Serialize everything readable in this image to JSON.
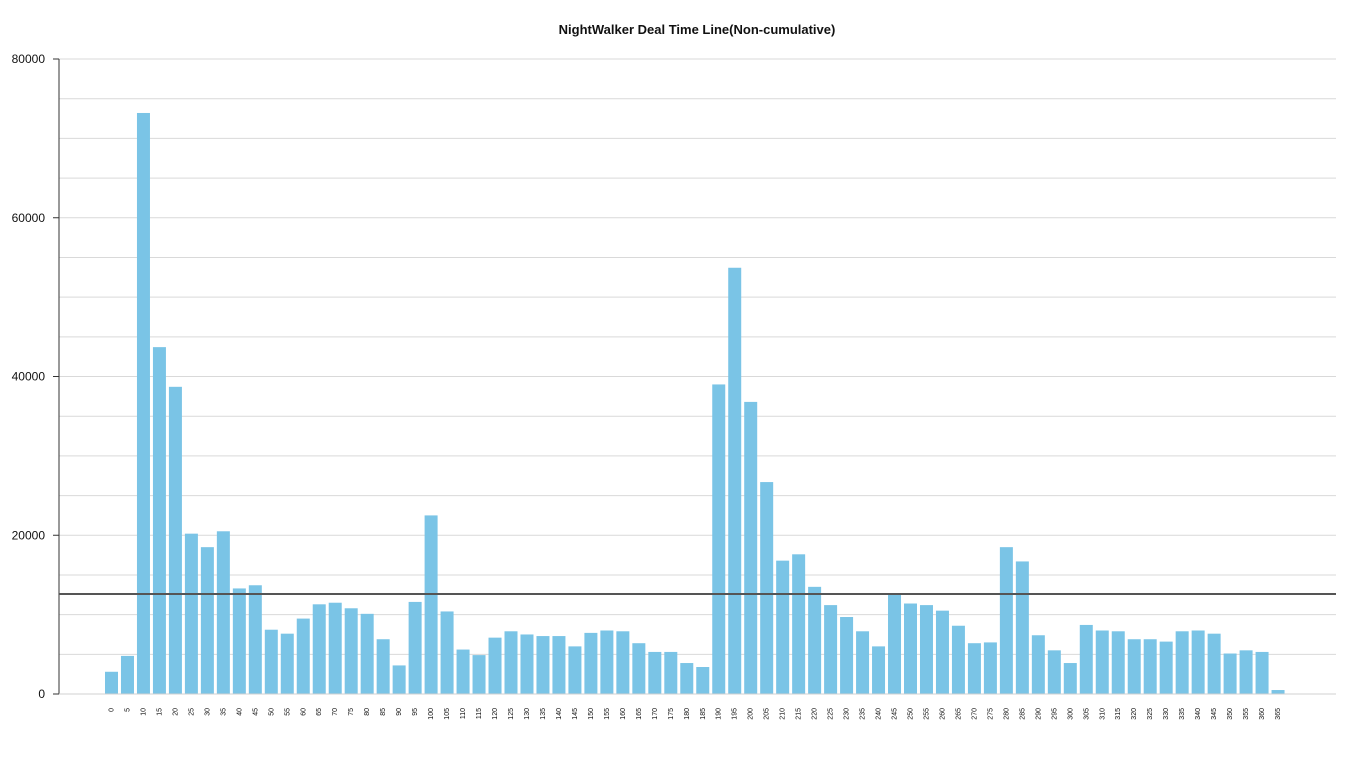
{
  "chart_data": {
    "type": "bar",
    "title": "NightWalker Deal Time Line(Non-cumulative)",
    "xlabel": "",
    "ylabel": "",
    "ylim": [
      0,
      80000
    ],
    "yticks": [
      0,
      20000,
      40000,
      60000,
      80000
    ],
    "grid": true,
    "legend": "none",
    "bar_color": "#7ac4e6",
    "grid_color": "#d9d9d9",
    "reference_line": {
      "value": 12600,
      "color": "#555555"
    },
    "categories": [
      "0",
      "5",
      "10",
      "15",
      "20",
      "25",
      "30",
      "35",
      "40",
      "45",
      "50",
      "55",
      "60",
      "65",
      "70",
      "75",
      "80",
      "85",
      "90",
      "95",
      "100",
      "105",
      "110",
      "115",
      "120",
      "125",
      "130",
      "135",
      "140",
      "145",
      "150",
      "155",
      "160",
      "165",
      "170",
      "175",
      "180",
      "185",
      "190",
      "195",
      "200",
      "205",
      "210",
      "215",
      "220",
      "225",
      "230",
      "235",
      "240",
      "245",
      "250",
      "255",
      "260",
      "265",
      "270",
      "275",
      "280",
      "285",
      "290",
      "295",
      "300",
      "305",
      "310",
      "315",
      "320",
      "325",
      "330",
      "335",
      "340",
      "345",
      "350",
      "355",
      "360",
      "365"
    ],
    "values": [
      2800,
      4800,
      73200,
      43700,
      38700,
      20200,
      18500,
      20500,
      13300,
      13700,
      8100,
      7600,
      9500,
      11300,
      11500,
      10800,
      10100,
      6900,
      3600,
      11600,
      22500,
      10400,
      5600,
      4900,
      7100,
      7900,
      7500,
      7300,
      7300,
      6000,
      7700,
      8000,
      7900,
      6400,
      5300,
      5300,
      3900,
      3400,
      39000,
      53700,
      36800,
      26700,
      16800,
      17600,
      13500,
      11200,
      9700,
      7900,
      6000,
      12500,
      11400,
      11200,
      10500,
      8600,
      6400,
      6500,
      18500,
      16700,
      7400,
      5500,
      3900,
      8700,
      8000,
      7900,
      6900,
      6900,
      6600,
      7900,
      8000,
      7600,
      5100,
      5500,
      5300,
      500
    ]
  }
}
